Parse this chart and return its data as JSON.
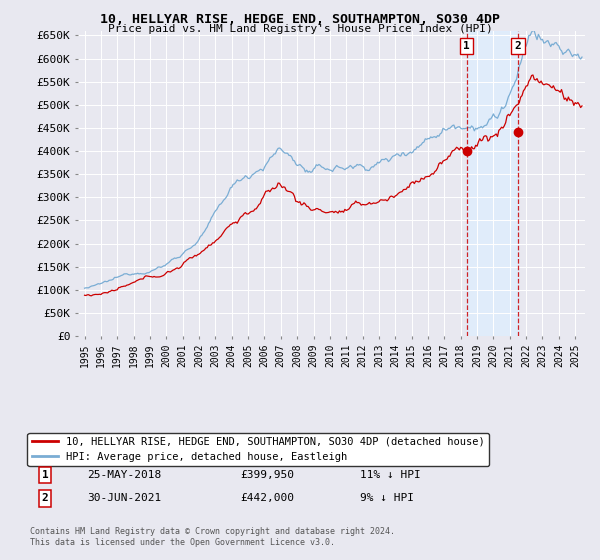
{
  "title": "10, HELLYAR RISE, HEDGE END, SOUTHAMPTON, SO30 4DP",
  "subtitle": "Price paid vs. HM Land Registry's House Price Index (HPI)",
  "background_color": "#e8e8f0",
  "plot_background": "#e8e8f0",
  "grid_color": "#ffffff",
  "ylim": [
    0,
    660000
  ],
  "yticks": [
    0,
    50000,
    100000,
    150000,
    200000,
    250000,
    300000,
    350000,
    400000,
    450000,
    500000,
    550000,
    600000,
    650000
  ],
  "ytick_labels": [
    "£0",
    "£50K",
    "£100K",
    "£150K",
    "£200K",
    "£250K",
    "£300K",
    "£350K",
    "£400K",
    "£450K",
    "£500K",
    "£550K",
    "£600K",
    "£650K"
  ],
  "legend_label_red": "10, HELLYAR RISE, HEDGE END, SOUTHAMPTON, SO30 4DP (detached house)",
  "legend_label_blue": "HPI: Average price, detached house, Eastleigh",
  "sale1_date": "25-MAY-2018",
  "sale1_price": 399950,
  "sale1_hpi": "11% ↓ HPI",
  "sale1_x": 2018.37,
  "sale2_date": "30-JUN-2021",
  "sale2_price": 442000,
  "sale2_hpi": "9% ↓ HPI",
  "sale2_x": 2021.5,
  "footer": "Contains HM Land Registry data © Crown copyright and database right 2024.\nThis data is licensed under the Open Government Licence v3.0.",
  "red_color": "#cc0000",
  "blue_color": "#7aadd4",
  "shade_color": "#ddeeff",
  "vline_color": "#cc0000",
  "marker_box_color": "#cc0000"
}
